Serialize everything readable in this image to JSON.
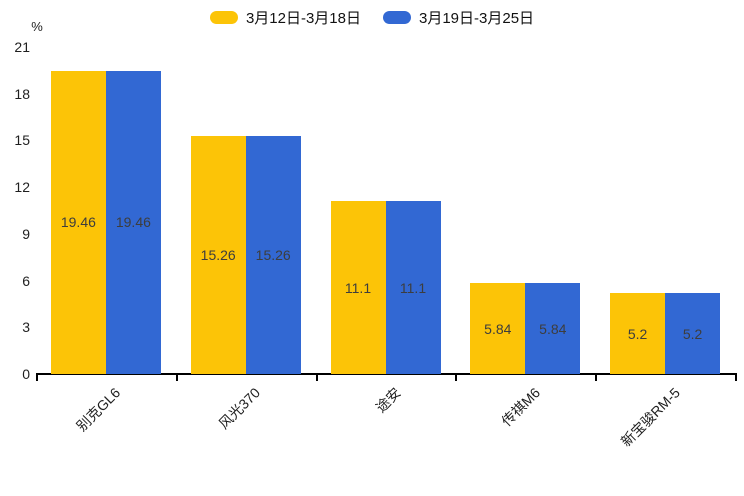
{
  "chart_data": {
    "type": "bar",
    "title": "",
    "categories": [
      "别克GL6",
      "风光370",
      "途安",
      "传祺M6",
      "新宝骏RM-5"
    ],
    "series": [
      {
        "name": "3月12日-3月18日",
        "color": "#FCC407",
        "values": [
          19.46,
          15.26,
          11.1,
          5.84,
          5.2
        ]
      },
      {
        "name": "3月19日-3月25日",
        "color": "#3268D3",
        "values": [
          19.46,
          15.26,
          11.1,
          5.84,
          5.2
        ]
      }
    ],
    "xlabel": "",
    "ylabel": "%",
    "ylim": [
      0,
      21
    ],
    "yticks": [
      0,
      3,
      6,
      9,
      12,
      15,
      18,
      21
    ],
    "grid": false,
    "legend_position": "top",
    "bar_labels_visible": true,
    "axis_color": "#000000",
    "label_color": "#3d3d3d"
  }
}
